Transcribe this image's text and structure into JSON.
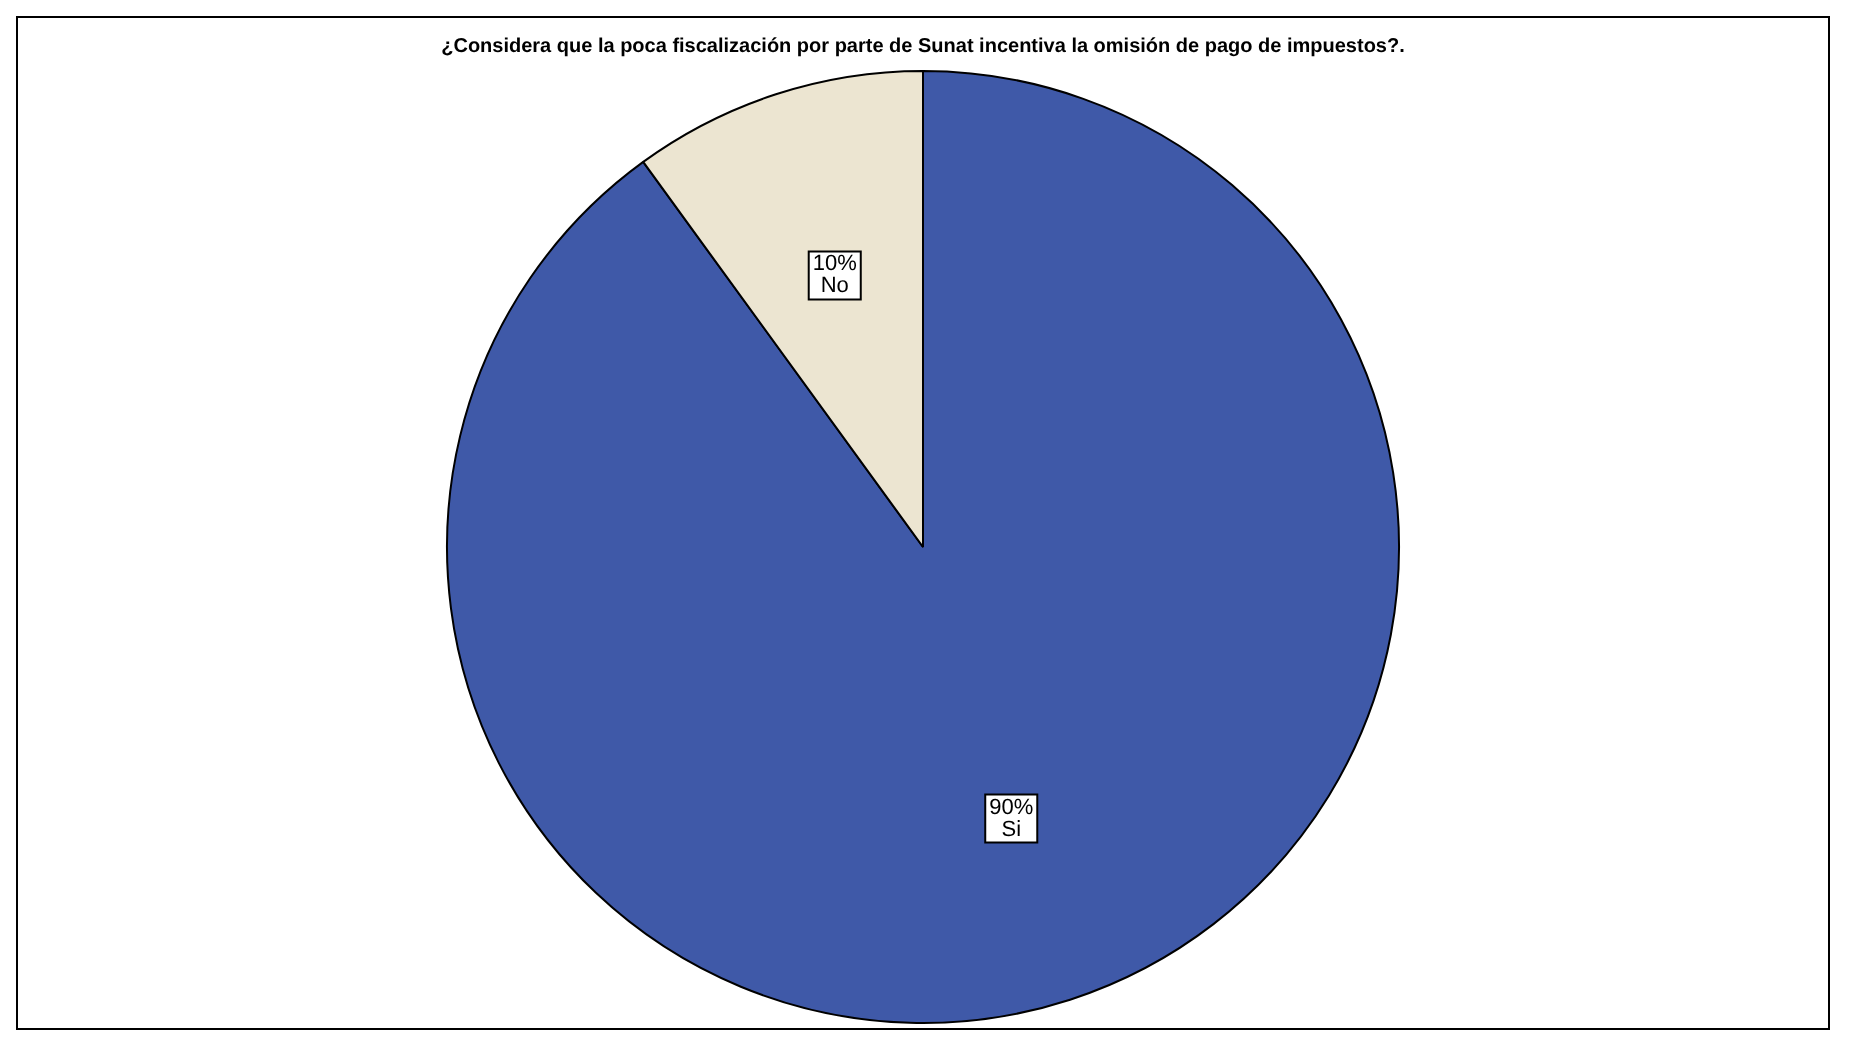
{
  "chart_data": {
    "type": "pie",
    "title": "¿Considera que la poca fiscalización por parte de Sunat incentiva la omisión de pago de impuestos?.",
    "categories": [
      "Si",
      "No"
    ],
    "values": [
      90,
      10
    ],
    "colors": [
      "#3f59a8",
      "#ece5d1"
    ],
    "value_labels": [
      "90%",
      "10%"
    ],
    "legend": false
  }
}
